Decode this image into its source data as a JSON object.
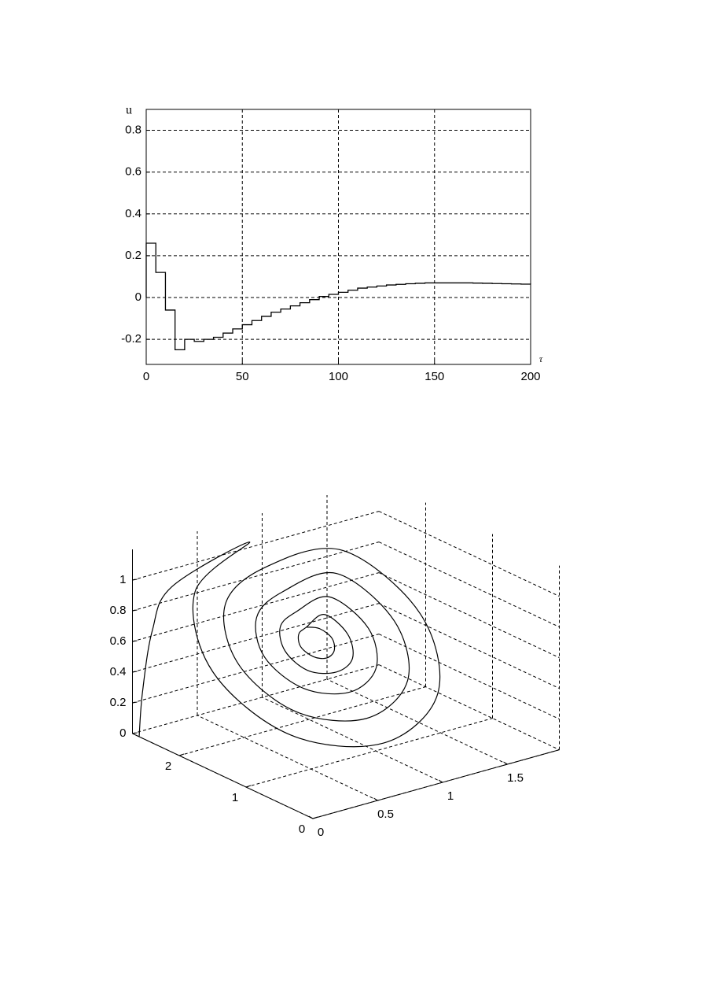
{
  "chart_data": [
    {
      "type": "step",
      "x_label": "τ",
      "y_label": "u",
      "color": "#000000",
      "grid": true,
      "x": [
        0,
        5,
        10,
        15,
        20,
        25,
        30,
        35,
        40,
        45,
        50,
        55,
        60,
        65,
        70,
        75,
        80,
        85,
        90,
        95,
        100,
        105,
        110,
        115,
        120,
        125,
        130,
        135,
        140,
        145,
        150,
        155,
        160,
        165,
        170,
        175,
        180,
        185,
        190,
        195,
        200
      ],
      "values": [
        0.26,
        0.12,
        -0.06,
        -0.25,
        -0.2,
        -0.21,
        -0.2,
        -0.19,
        -0.17,
        -0.15,
        -0.13,
        -0.11,
        -0.09,
        -0.07,
        -0.055,
        -0.04,
        -0.025,
        -0.01,
        0.005,
        0.015,
        0.025,
        0.035,
        0.045,
        0.05,
        0.055,
        0.06,
        0.063,
        0.066,
        0.068,
        0.07,
        0.07,
        0.07,
        0.07,
        0.07,
        0.069,
        0.068,
        0.067,
        0.066,
        0.065,
        0.064,
        0.063
      ],
      "xlim": [
        0,
        200
      ],
      "ylim": [
        -0.32,
        0.9
      ],
      "xticks": [
        0,
        50,
        100,
        150,
        200
      ],
      "yticks": [
        -0.2,
        0,
        0.2,
        0.4,
        0.6,
        0.8
      ]
    },
    {
      "type": "line3d",
      "color": "#000000",
      "grid": true,
      "x": [
        0.0,
        0.0,
        0.05,
        0.2,
        0.8,
        0.23,
        0,
        0.23,
        0.8,
        1.37,
        1.6,
        1.37,
        0.8,
        0.37,
        0.2,
        0.37,
        0.8,
        1.23,
        1.4,
        1.23,
        0.8,
        0.52,
        0.4,
        0.52,
        0.8,
        1.08,
        1.2,
        1.08,
        0.8,
        0.63,
        0.56,
        0.63,
        0.8,
        0.97,
        1.04,
        0.97,
        0.8,
        0.72,
        0.68,
        0.72,
        0.8,
        0.88,
        0.92,
        0.88,
        0.8
      ],
      "y": [
        2.6,
        2.55,
        2.5,
        2.5,
        2.5,
        2.21,
        1.5,
        0.79,
        0.5,
        0.79,
        1.5,
        2.21,
        2.25,
        2.03,
        1.5,
        0.97,
        0.75,
        0.97,
        1.5,
        2.03,
        2.0,
        1.85,
        1.5,
        1.15,
        1.0,
        1.15,
        1.5,
        1.85,
        1.8,
        1.71,
        1.5,
        1.29,
        1.2,
        1.29,
        1.5,
        1.71,
        1.65,
        1.61,
        1.5,
        1.39,
        1.35,
        1.39,
        1.5,
        1.61,
        1.65
      ],
      "z": [
        0.0,
        0.3,
        0.7,
        0.95,
        1.1,
        0.97,
        0.65,
        0.33,
        0.2,
        0.33,
        0.65,
        0.97,
        0.99,
        0.89,
        0.65,
        0.41,
        0.31,
        0.41,
        0.65,
        0.89,
        0.88,
        0.81,
        0.65,
        0.49,
        0.43,
        0.49,
        0.65,
        0.81,
        0.79,
        0.75,
        0.65,
        0.55,
        0.52,
        0.55,
        0.65,
        0.75,
        0.72,
        0.7,
        0.65,
        0.6,
        0.58,
        0.6,
        0.65,
        0.7,
        0.72
      ],
      "xlim": [
        0,
        1.9
      ],
      "ylim": [
        0,
        2.7
      ],
      "zlim": [
        0,
        1.2
      ],
      "xticks": [
        0,
        0.5,
        1,
        1.5
      ],
      "yticks": [
        0,
        1,
        2
      ],
      "zticks": [
        0,
        0.2,
        0.4,
        0.6,
        0.8,
        1
      ]
    }
  ]
}
